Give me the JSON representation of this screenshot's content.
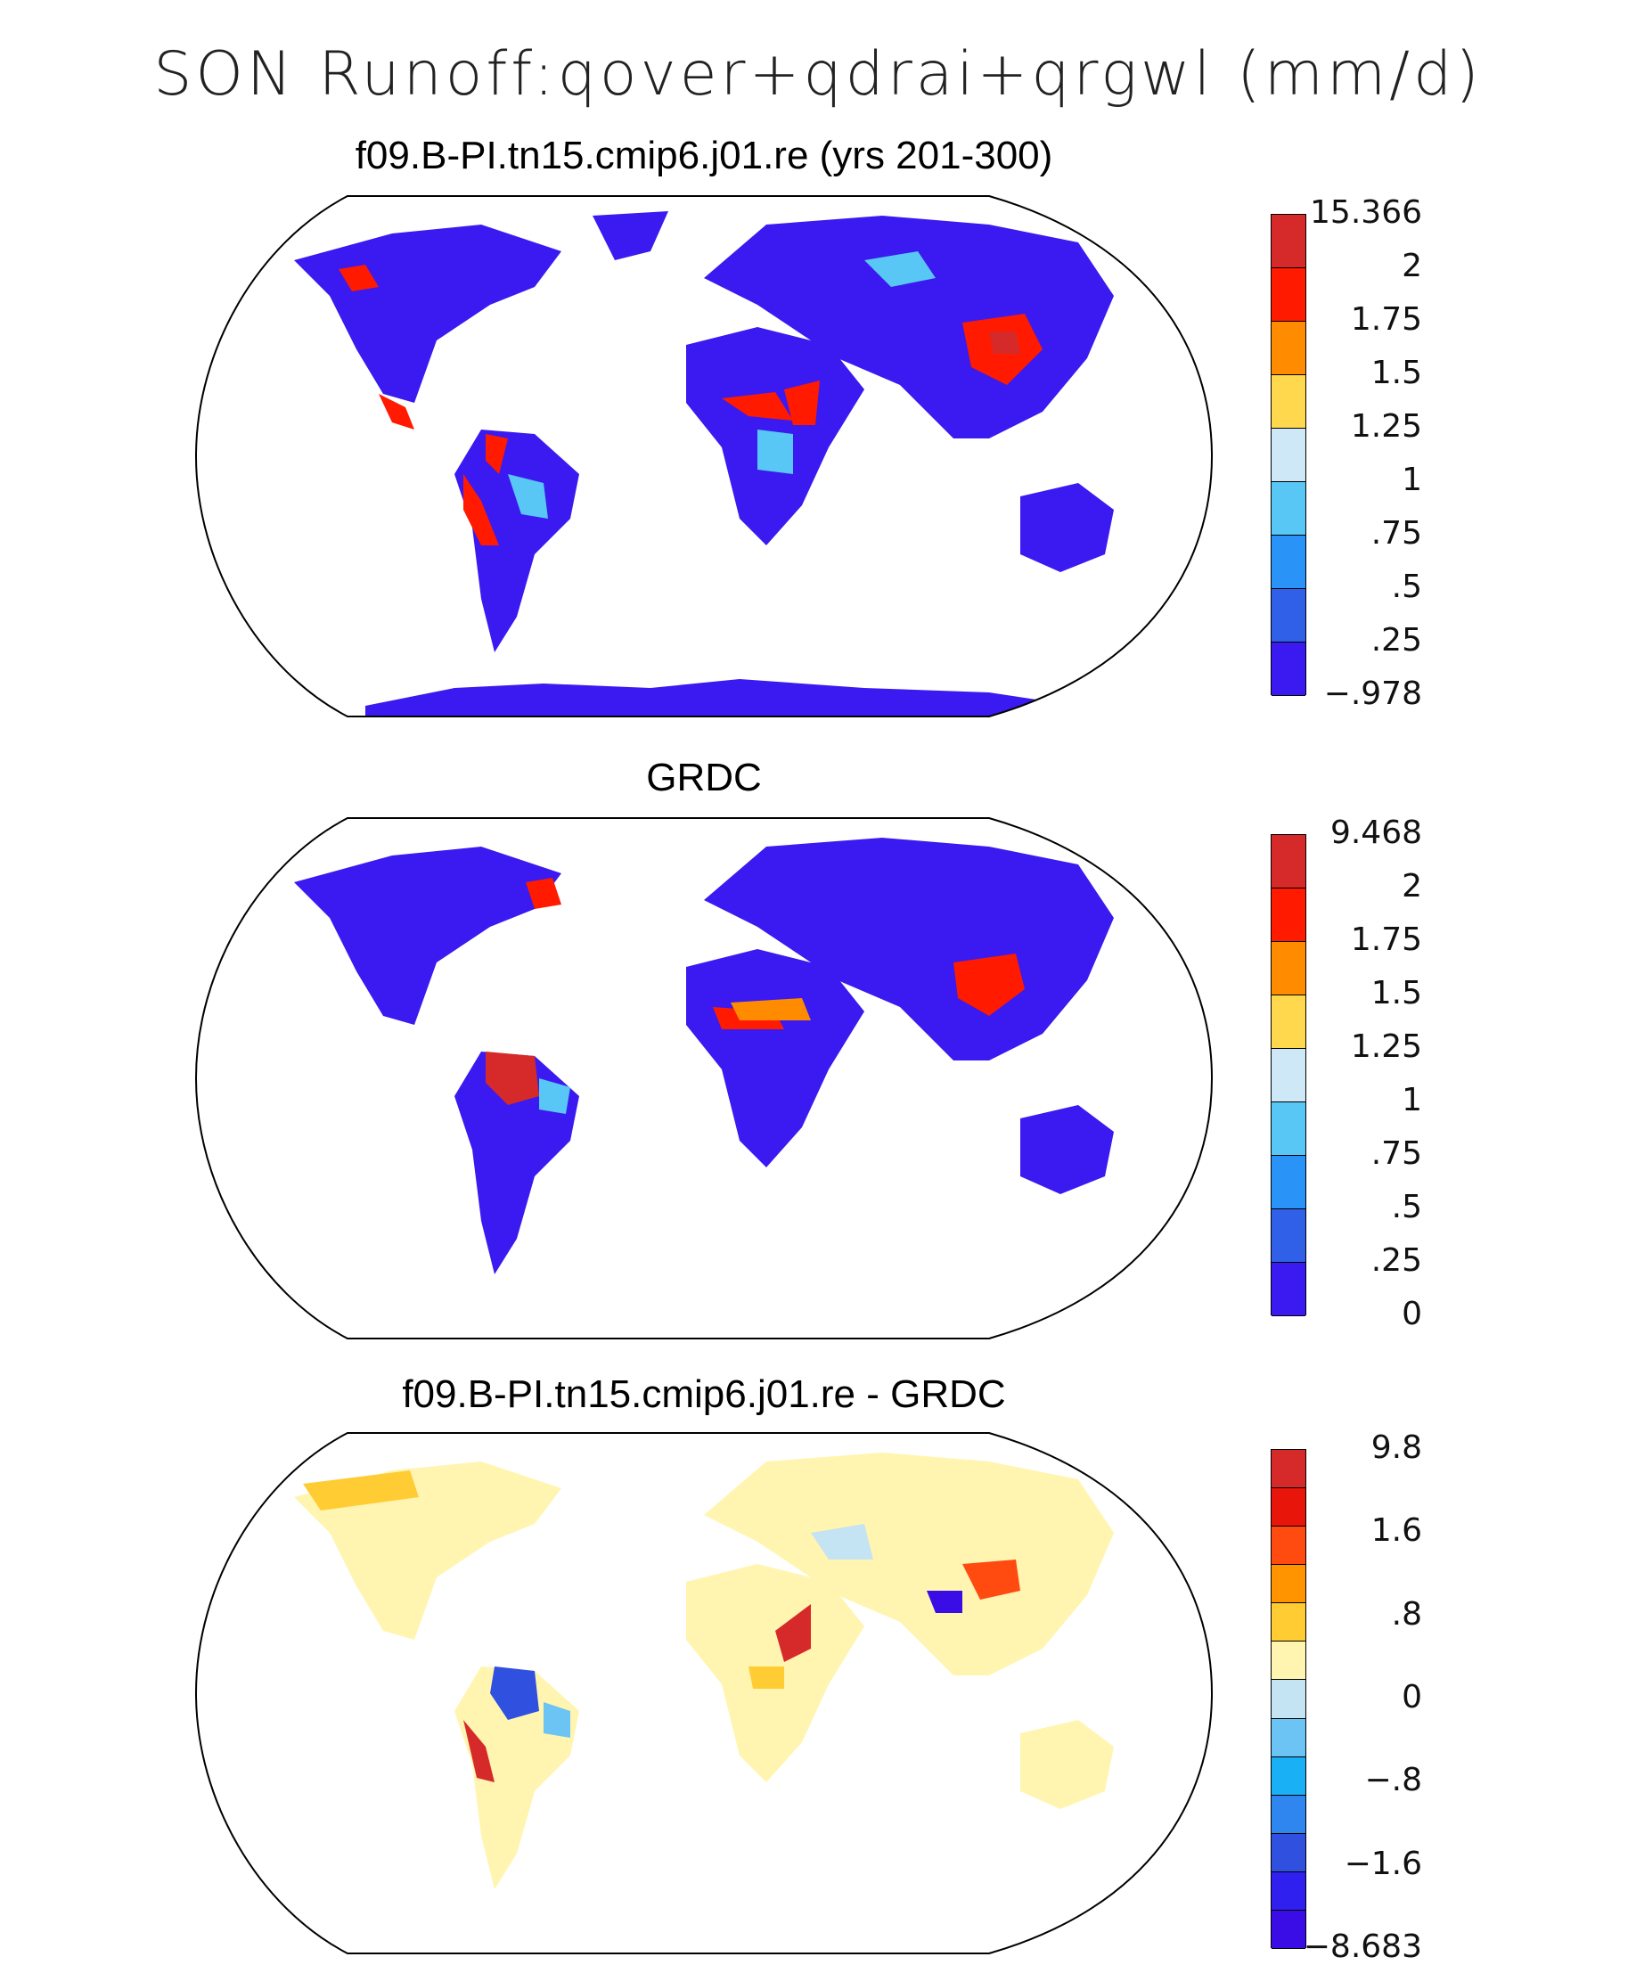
{
  "title": "SON Runoff:qover+qdrai+qrgwl (mm/d)",
  "panels": [
    {
      "title": "f09.B-PI.tn15.cmip6.j01.re (yrs 201-300)",
      "colorbar": {
        "labels": [
          "15.366",
          "2",
          "1.75",
          "1.5",
          "1.25",
          "1",
          ".75",
          ".5",
          ".25",
          "-.978"
        ],
        "colors": [
          "#d62a2a",
          "#ff1a00",
          "#ff8c00",
          "#ffd84d",
          "#cfe8f7",
          "#59c7f5",
          "#2a93f7",
          "#3060e8",
          "#3a1af0"
        ]
      }
    },
    {
      "title": "GRDC",
      "colorbar": {
        "labels": [
          "9.468",
          "2",
          "1.75",
          "1.5",
          "1.25",
          "1",
          ".75",
          ".5",
          ".25",
          "0"
        ],
        "colors": [
          "#d62a2a",
          "#ff1a00",
          "#ff8c00",
          "#ffd84d",
          "#cfe8f7",
          "#59c7f5",
          "#2a93f7",
          "#3060e8",
          "#3a1af0"
        ]
      }
    },
    {
      "title": "f09.B-PI.tn15.cmip6.j01.re - GRDC",
      "colorbar": {
        "labels": [
          "9.8",
          "1.6",
          ".8",
          "0",
          "-.8",
          "-1.6",
          "-8.683"
        ],
        "colors": [
          "#d62a2a",
          "#e8150a",
          "#ff4a10",
          "#ff9400",
          "#ffcc33",
          "#fff5b0",
          "#c4e3f3",
          "#6cc4f5",
          "#1ab0f5",
          "#2f86ee",
          "#3050e0",
          "#2f20f0",
          "#3a0de6"
        ]
      }
    }
  ]
}
